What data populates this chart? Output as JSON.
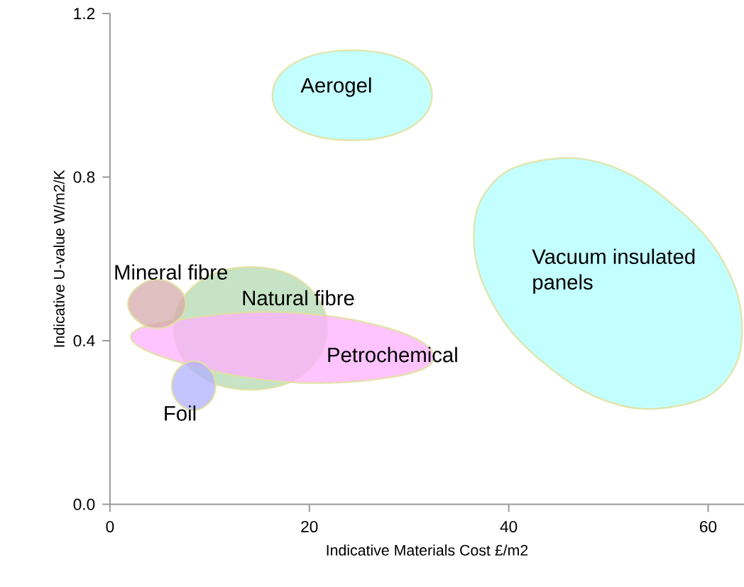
{
  "chart_data": {
    "type": "area",
    "xlabel": "Indicative Materials Cost £/m2",
    "ylabel": "Indicative U-value W/m2/K",
    "xlim": [
      0,
      63.6
    ],
    "ylim": [
      0,
      1.2
    ],
    "xticks": [
      0,
      20,
      40,
      60
    ],
    "yticks": [
      {
        "value": 0,
        "label": "0.0"
      },
      {
        "value": 0.4,
        "label": "0.4"
      },
      {
        "value": 0.8,
        "label": "0.8"
      },
      {
        "value": 1.2,
        "label": "1.2"
      }
    ],
    "grid": false,
    "series": [
      {
        "color": "#b3d9b3",
        "x": [
          21.8,
          19.5,
          14.1,
          8.7,
          6.4,
          8.7,
          14.1,
          19.5
        ],
        "values": [
          0.43,
          0.54,
          0.58,
          0.54,
          0.43,
          0.32,
          0.28,
          0.32
        ]
      },
      {
        "color": "#ffb0ff",
        "x": [
          32.5,
          28.0,
          17.3,
          6.6,
          2.1,
          6.6,
          17.3,
          28.0
        ],
        "values": [
          0.36,
          0.43,
          0.47,
          0.45,
          0.41,
          0.35,
          0.3,
          0.31
        ]
      },
      {
        "color": "#d4aaaa",
        "x": [
          7.6,
          6.8,
          4.7,
          2.7,
          1.8,
          2.7,
          4.7,
          6.8
        ],
        "values": [
          0.49,
          0.53,
          0.55,
          0.53,
          0.49,
          0.45,
          0.43,
          0.45
        ]
      },
      {
        "color": "#b0b0ff",
        "x": [
          10.6,
          10.0,
          8.4,
          6.8,
          6.2,
          6.8,
          8.4,
          10.0
        ],
        "values": [
          0.29,
          0.33,
          0.35,
          0.33,
          0.29,
          0.25,
          0.23,
          0.25
        ]
      },
      {
        "color": "#b0ffff",
        "x": [
          32.3,
          30.0,
          24.3,
          18.6,
          16.3,
          18.6,
          24.3,
          30.0
        ],
        "values": [
          1.0,
          1.08,
          1.11,
          1.08,
          1.0,
          0.92,
          0.89,
          0.92
        ]
      },
      {
        "color": "#b0ffff",
        "x": [
          61.7,
          56.8,
          50.1,
          43.3,
          38.4,
          36.5,
          38.2,
          43.1,
          49.9,
          56.6,
          61.6,
          63.4
        ],
        "values": [
          0.3,
          0.24,
          0.25,
          0.35,
          0.49,
          0.65,
          0.78,
          0.84,
          0.83,
          0.73,
          0.59,
          0.43
        ]
      }
    ],
    "annotations": [
      "Natural fibre",
      "Petrochemical",
      "Mineral fibre",
      "Foil",
      "Aerogel",
      "Vacuum insulated panels"
    ]
  }
}
